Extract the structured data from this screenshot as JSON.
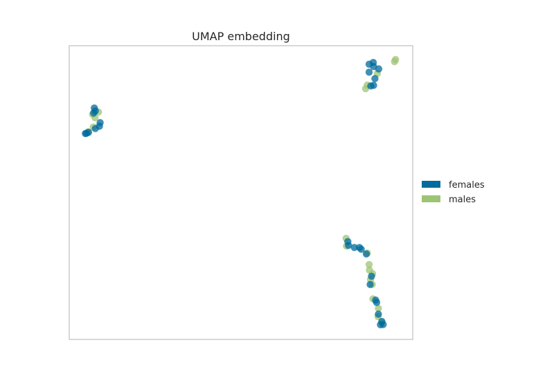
{
  "chart_data": {
    "type": "scatter",
    "title": "UMAP embedding",
    "xlabel": "",
    "ylabel": "",
    "xlim": [
      0,
      100
    ],
    "ylim": [
      0,
      100
    ],
    "grid": false,
    "legend_position": "right",
    "series": [
      {
        "name": "females",
        "color": "#006b9c",
        "points": [
          [
            7.3,
            78.8
          ],
          [
            7.6,
            77.8
          ],
          [
            7.1,
            77.1
          ],
          [
            9.0,
            73.8
          ],
          [
            8.8,
            72.6
          ],
          [
            7.6,
            71.8
          ],
          [
            5.6,
            70.5
          ],
          [
            5.0,
            70.2
          ],
          [
            4.7,
            70.1
          ],
          [
            88.5,
            94.3
          ],
          [
            87.3,
            93.7
          ],
          [
            90.1,
            92.1
          ],
          [
            88.6,
            92.9
          ],
          [
            87.3,
            91.0
          ],
          [
            89.0,
            88.8
          ],
          [
            88.6,
            86.5
          ],
          [
            87.8,
            86.3
          ],
          [
            81.1,
            33.3
          ],
          [
            81.3,
            32.0
          ],
          [
            83.0,
            31.3
          ],
          [
            84.5,
            31.3
          ],
          [
            85.0,
            30.7
          ],
          [
            86.5,
            29.1
          ],
          [
            88.0,
            21.5
          ],
          [
            87.6,
            18.7
          ],
          [
            89.2,
            13.4
          ],
          [
            89.5,
            12.6
          ],
          [
            90.0,
            8.6
          ],
          [
            91.0,
            6.1
          ],
          [
            90.6,
            5.0
          ],
          [
            91.4,
            5.1
          ]
        ]
      },
      {
        "name": "males",
        "color": "#9dc475",
        "points": [
          [
            8.5,
            77.4
          ],
          [
            6.8,
            76.6
          ],
          [
            7.5,
            75.5
          ],
          [
            7.0,
            72.3
          ],
          [
            5.5,
            70.7
          ],
          [
            95.0,
            95.3
          ],
          [
            94.7,
            94.6
          ],
          [
            89.7,
            90.6
          ],
          [
            86.8,
            86.6
          ],
          [
            86.3,
            85.4
          ],
          [
            80.6,
            34.4
          ],
          [
            80.7,
            31.8
          ],
          [
            86.8,
            29.4
          ],
          [
            87.3,
            25.5
          ],
          [
            87.4,
            23.6
          ],
          [
            88.3,
            22.4
          ],
          [
            87.7,
            20.4
          ],
          [
            88.2,
            18.7
          ],
          [
            88.4,
            13.8
          ],
          [
            90.0,
            10.6
          ],
          [
            89.9,
            7.8
          ],
          [
            91.0,
            5.8
          ]
        ]
      }
    ]
  }
}
